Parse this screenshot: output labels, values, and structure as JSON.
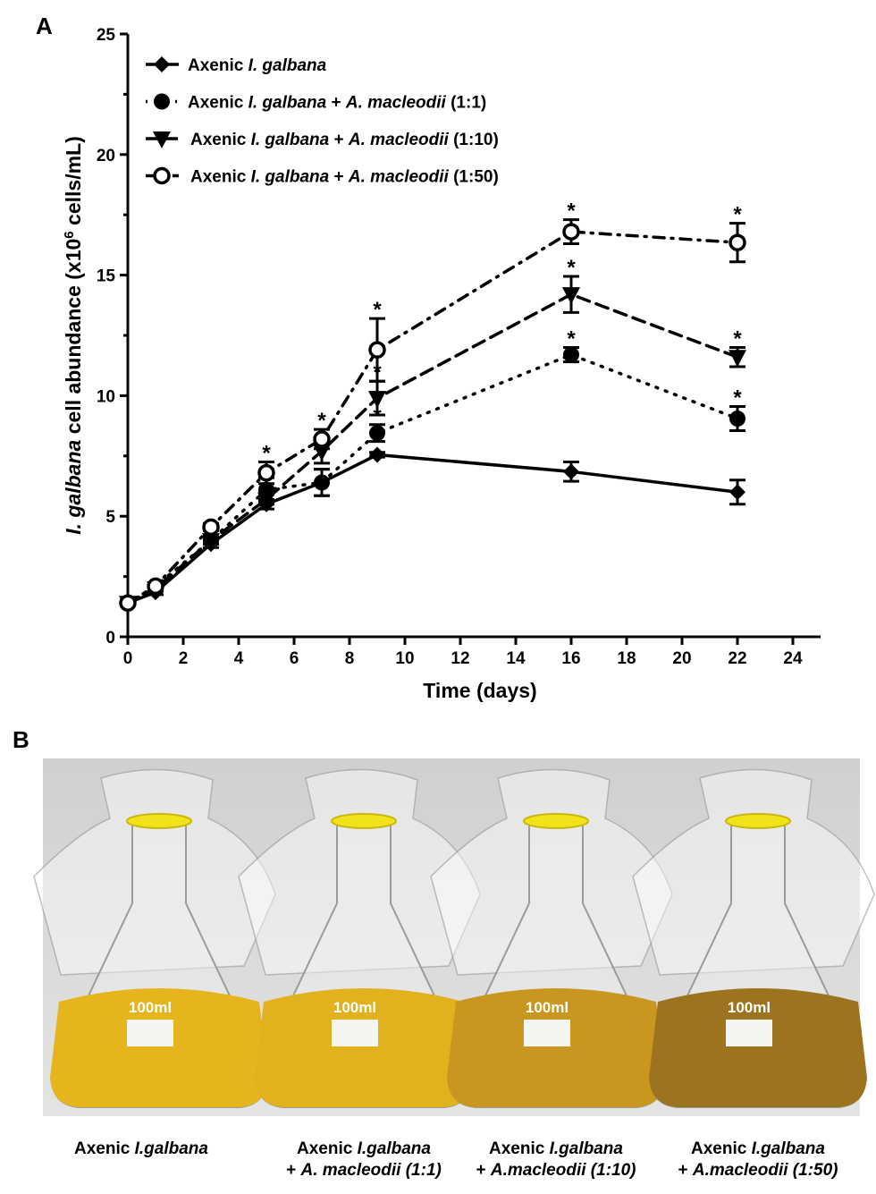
{
  "panel_a_label": "A",
  "panel_b_label": "B",
  "chart_data": {
    "type": "line",
    "xlabel": "Time (days)",
    "ylabel_parts": [
      "I. galbana",
      " cell abundance (x10",
      "6",
      " cells/mL)"
    ],
    "xlim": [
      0,
      25
    ],
    "ylim": [
      0,
      25
    ],
    "xticks": [
      0,
      2,
      4,
      6,
      8,
      10,
      12,
      14,
      16,
      18,
      20,
      22,
      24
    ],
    "yticks": [
      0,
      5,
      10,
      15,
      20,
      25
    ],
    "grid": false,
    "legend_position": "top-left",
    "x": [
      0,
      1,
      3,
      5,
      7,
      9,
      16,
      22
    ],
    "significance_marker": "*",
    "series": [
      {
        "name_parts": [
          "Axenic ",
          "I. galbana",
          "",
          "",
          ""
        ],
        "marker": "diamond-filled",
        "line": "solid",
        "values": [
          1.4,
          1.85,
          3.85,
          5.5,
          6.4,
          7.55,
          6.85,
          6.0
        ],
        "errors": [
          0.1,
          0.1,
          0.15,
          0.2,
          0.55,
          0.1,
          0.4,
          0.5
        ],
        "significant": [
          false,
          false,
          false,
          false,
          false,
          false,
          false,
          false
        ]
      },
      {
        "name_parts": [
          "Axenic ",
          "I. galbana",
          " + ",
          "A. macleodii",
          " (1:1)"
        ],
        "marker": "circle-filled",
        "line": "dotted",
        "values": [
          1.4,
          2.1,
          4.0,
          6.1,
          6.4,
          8.45,
          11.7,
          9.05
        ],
        "errors": [
          0.1,
          0.1,
          0.15,
          0.5,
          0.55,
          0.35,
          0.3,
          0.5
        ],
        "significant": [
          false,
          false,
          false,
          false,
          false,
          true,
          true,
          true
        ]
      },
      {
        "name_parts": [
          "Axenic ",
          "I. galbana",
          " + ",
          "A. macleodii",
          " (1:10)"
        ],
        "marker": "triangle-down-filled",
        "line": "dashed",
        "values": [
          1.4,
          2.0,
          4.0,
          5.7,
          7.7,
          9.9,
          14.2,
          11.6
        ],
        "errors": [
          0.1,
          0.1,
          0.15,
          0.2,
          0.5,
          0.7,
          0.75,
          0.4
        ],
        "significant": [
          false,
          false,
          false,
          false,
          false,
          true,
          true,
          true
        ]
      },
      {
        "name_parts": [
          "Axenic ",
          "I. galbana",
          " + ",
          "A. macleodii",
          " (1:50)"
        ],
        "marker": "circle-open",
        "line": "dash-dot",
        "values": [
          1.4,
          2.1,
          4.55,
          6.8,
          8.2,
          11.9,
          16.8,
          16.35
        ],
        "errors": [
          0.1,
          0.1,
          0.15,
          0.45,
          0.4,
          1.3,
          0.5,
          0.8
        ],
        "significant": [
          false,
          false,
          false,
          true,
          true,
          true,
          true,
          true
        ]
      }
    ]
  },
  "photo": {
    "liquid_colors": [
      "#e6b41c",
      "#e2b11e",
      "#c9971f",
      "#9c7420"
    ],
    "band_color": "#f2e21a",
    "flask_print": "100ml",
    "captions": [
      {
        "line1_parts": [
          "Axenic ",
          "I.galbana"
        ],
        "line2_parts": [
          "",
          ""
        ]
      },
      {
        "line1_parts": [
          "Axenic ",
          "I.galbana"
        ],
        "line2_parts": [
          "+ ",
          "A. macleodii (1:1)"
        ]
      },
      {
        "line1_parts": [
          "Axenic ",
          "I.galbana"
        ],
        "line2_parts": [
          "+ ",
          "A.macleodii (1:10)"
        ]
      },
      {
        "line1_parts": [
          "Axenic ",
          "I.galbana"
        ],
        "line2_parts": [
          "+ ",
          "A.macleodii (1:50)"
        ]
      }
    ]
  }
}
